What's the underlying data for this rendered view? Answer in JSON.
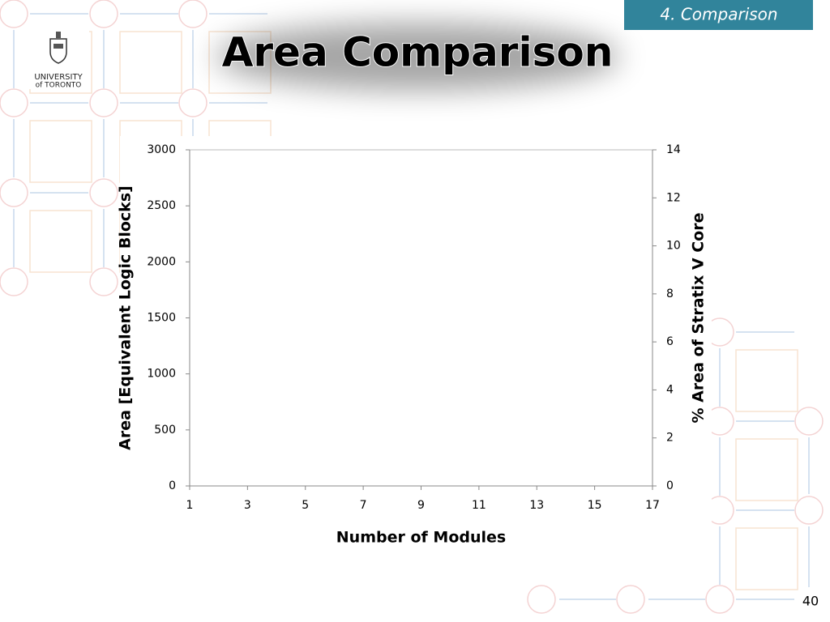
{
  "slide": {
    "section": "4. Comparison",
    "page_number": 40,
    "logo": [
      "UNIVERSITY",
      "of TORONTO"
    ]
  },
  "chart_data": {
    "type": "line",
    "title": "Area Comparison",
    "x_label": "Number of Modules",
    "y_label": "Area [Equivalent Logic Blocks]",
    "y2_label": "% Area of Stratix V Core",
    "series": [],
    "xlim": [
      1,
      17
    ],
    "xticks": [
      1,
      3,
      5,
      7,
      9,
      11,
      13,
      15,
      17
    ],
    "ylim": [
      0,
      3000
    ],
    "yticks": [
      0,
      500,
      1000,
      1500,
      2000,
      2500,
      3000
    ],
    "y2lim": [
      0,
      14
    ],
    "y2ticks": [
      0,
      2,
      4,
      6,
      8,
      10,
      12,
      14
    ],
    "grid": false
  }
}
